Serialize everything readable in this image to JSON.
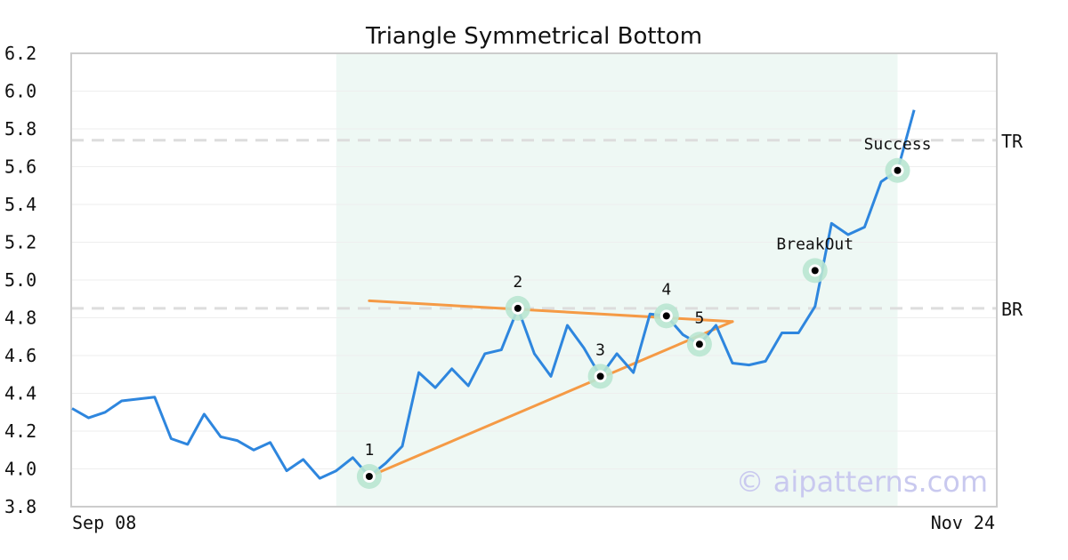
{
  "chart_data": {
    "type": "line",
    "title": "Triangle Symmetrical Bottom",
    "watermark": "© aipatterns.com",
    "x_tick_labels": [
      "Sep 08",
      "Nov 24"
    ],
    "ylim": [
      3.8,
      6.2
    ],
    "y_ticks": [
      "3.8",
      "4.0",
      "4.2",
      "4.4",
      "4.6",
      "4.8",
      "5.0",
      "5.2",
      "5.4",
      "5.6",
      "5.8",
      "6.0",
      "6.2"
    ],
    "grid": true,
    "colors": {
      "price": "#2e86de",
      "pattern": "#f59a45",
      "highlight": "#eef8f4",
      "marker_halo": "#b9e6d2",
      "level_line": "#dddddd",
      "axis": "#cccccc",
      "grid": "#eeeeee"
    },
    "highlight_range": [
      16,
      50
    ],
    "series": [
      {
        "values": [
          4.32,
          4.27,
          4.3,
          4.36,
          4.37,
          4.38,
          4.16,
          4.13,
          4.29,
          4.17,
          4.15,
          4.1,
          4.14,
          3.99,
          4.05,
          3.95,
          3.99,
          4.06,
          3.96,
          4.03,
          4.12,
          4.51,
          4.43,
          4.53,
          4.44,
          4.61,
          4.63,
          4.85,
          4.61,
          4.49,
          4.76,
          4.64,
          4.49,
          4.61,
          4.51,
          4.82,
          4.81,
          4.71,
          4.66,
          4.76,
          4.56,
          4.55,
          4.57,
          4.72,
          4.72,
          4.86,
          5.3,
          5.24,
          5.28,
          5.52,
          5.58,
          5.9
        ]
      }
    ],
    "levels": [
      {
        "label": "TR",
        "value": 5.74
      },
      {
        "label": "BR",
        "value": 4.85
      }
    ],
    "pattern_lines": [
      {
        "from": [
          18,
          4.89
        ],
        "to": [
          40,
          4.78
        ]
      },
      {
        "from": [
          18,
          3.96
        ],
        "to": [
          40,
          4.78
        ]
      }
    ],
    "points": [
      {
        "label": "1",
        "x": 18,
        "y": 3.96
      },
      {
        "label": "2",
        "x": 27,
        "y": 4.85
      },
      {
        "label": "3",
        "x": 32,
        "y": 4.49
      },
      {
        "label": "4",
        "x": 36,
        "y": 4.81
      },
      {
        "label": "5",
        "x": 38,
        "y": 4.66
      },
      {
        "label": "BreakOut",
        "x": 45,
        "y": 5.05
      },
      {
        "label": "Success",
        "x": 50,
        "y": 5.58
      }
    ]
  }
}
